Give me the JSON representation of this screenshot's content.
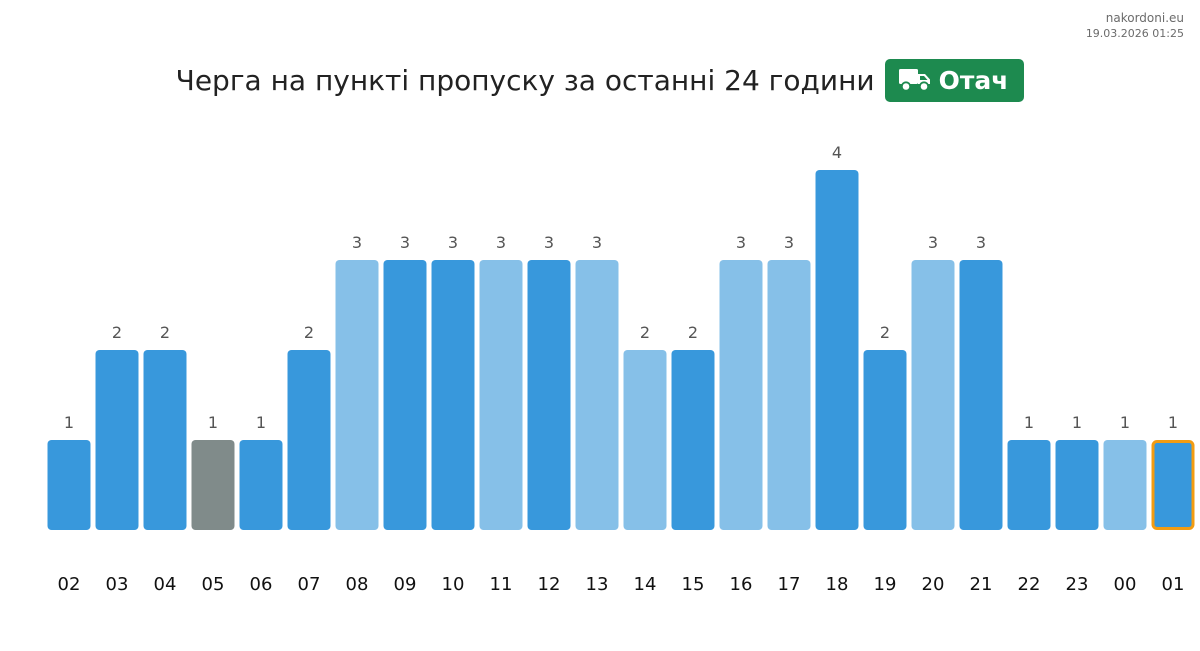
{
  "site": {
    "name": "nakordoni.eu",
    "timestamp": "19.03.2026 01:25"
  },
  "title": "Черга на пункті пропуску за останні 24 години",
  "badge": {
    "label": "Отач",
    "icon": "truck-icon",
    "color": "#1d8a4f"
  },
  "colors": {
    "dark_blue": "#3898dc",
    "light_blue": "#86c0e8",
    "gray": "#808b8a",
    "highlight_border": "#f39c12"
  },
  "chart_data": {
    "type": "bar",
    "title": "Черга на пункті пропуску за останні 24 години",
    "xlabel": "",
    "ylabel": "",
    "ylim": [
      0,
      4
    ],
    "grid": false,
    "categories": [
      "02",
      "03",
      "04",
      "05",
      "06",
      "07",
      "08",
      "09",
      "10",
      "11",
      "12",
      "13",
      "14",
      "15",
      "16",
      "17",
      "18",
      "19",
      "20",
      "21",
      "22",
      "23",
      "00",
      "01"
    ],
    "values": [
      1,
      2,
      2,
      1,
      1,
      2,
      3,
      3,
      3,
      3,
      3,
      3,
      2,
      2,
      3,
      3,
      4,
      2,
      3,
      3,
      1,
      1,
      1,
      1
    ],
    "bar_colors": [
      "dark_blue",
      "dark_blue",
      "dark_blue",
      "gray",
      "dark_blue",
      "dark_blue",
      "light_blue",
      "dark_blue",
      "dark_blue",
      "light_blue",
      "dark_blue",
      "light_blue",
      "light_blue",
      "dark_blue",
      "light_blue",
      "light_blue",
      "dark_blue",
      "dark_blue",
      "light_blue",
      "dark_blue",
      "dark_blue",
      "dark_blue",
      "light_blue",
      "dark_blue"
    ],
    "highlighted_category": "01"
  }
}
